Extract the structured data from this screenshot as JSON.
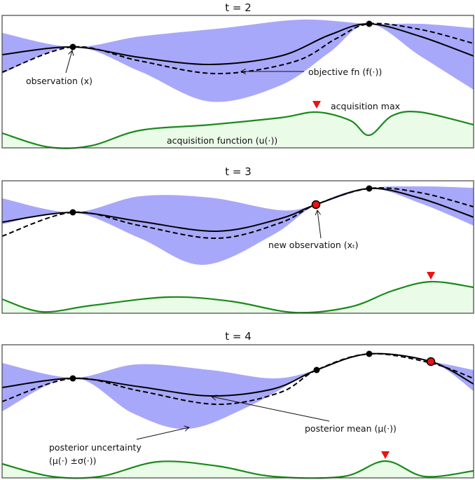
{
  "panels": [
    {
      "title": "t = 2",
      "labels": {
        "observation": "observation (x)",
        "objective": "objective fn (f(·))",
        "acq_max": "acquisition max",
        "acq_fn": "acquisition function (u(·))"
      }
    },
    {
      "title": "t = 3",
      "labels": {
        "new_observation": "new observation (xₜ)"
      }
    },
    {
      "title": "t = 4",
      "labels": {
        "posterior_mean": "posterior mean (μ(·))",
        "uncertainty_1": "posterior uncertainty",
        "uncertainty_2": "(μ(·) ±σ(·))"
      }
    }
  ],
  "colors": {
    "band": "#a8a8fa",
    "acquisition_line": "#1a8a1a",
    "acquisition_fill": "#eafbe8",
    "new_point": "#ee1111",
    "marker": "#ee1111"
  }
}
